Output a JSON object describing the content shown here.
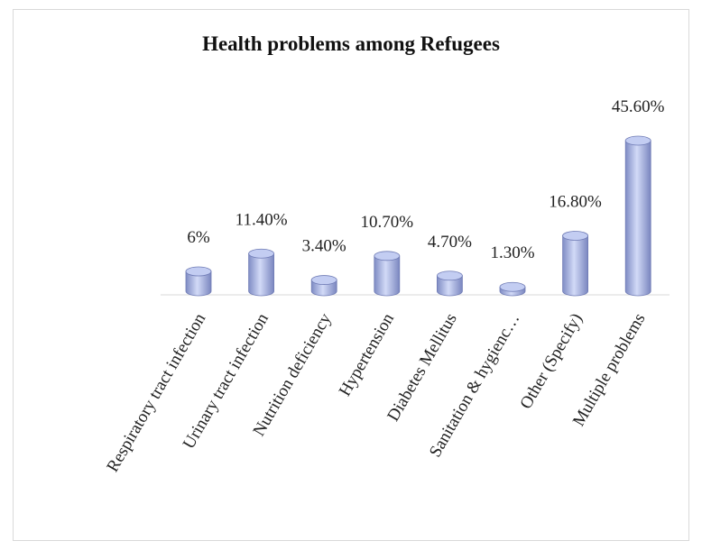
{
  "chart_data": {
    "type": "bar",
    "title": "Health problems among Refugees",
    "categories": [
      "Respiratory tract infection",
      "Urinary tract infection",
      "Nutrition deficiency",
      "Hypertension",
      "Diabetes Mellitus",
      "Sanitation & hygienc…",
      "Other (Specify)",
      "Multiple problems"
    ],
    "values": [
      6,
      11.4,
      3.4,
      10.7,
      4.7,
      1.3,
      16.8,
      45.6
    ],
    "data_labels": [
      "6%",
      "11.40%",
      "3.40%",
      "10.70%",
      "4.70%",
      "1.30%",
      "16.80%",
      "45.60%"
    ],
    "bar_style": "3d-cylinder",
    "bar_color": "#a8b4e6",
    "grid": false,
    "legend": "none"
  }
}
